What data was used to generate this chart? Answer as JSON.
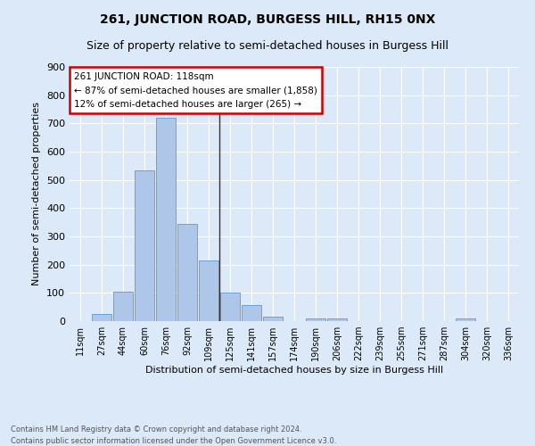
{
  "title": "261, JUNCTION ROAD, BURGESS HILL, RH15 0NX",
  "subtitle": "Size of property relative to semi-detached houses in Burgess Hill",
  "xlabel": "Distribution of semi-detached houses by size in Burgess Hill",
  "ylabel": "Number of semi-detached properties",
  "footnote1": "Contains HM Land Registry data © Crown copyright and database right 2024.",
  "footnote2": "Contains public sector information licensed under the Open Government Licence v3.0.",
  "bin_labels": [
    "11sqm",
    "27sqm",
    "44sqm",
    "60sqm",
    "76sqm",
    "92sqm",
    "109sqm",
    "125sqm",
    "141sqm",
    "157sqm",
    "174sqm",
    "190sqm",
    "206sqm",
    "222sqm",
    "239sqm",
    "255sqm",
    "271sqm",
    "287sqm",
    "304sqm",
    "320sqm",
    "336sqm"
  ],
  "bar_heights": [
    0,
    25,
    105,
    535,
    720,
    345,
    215,
    100,
    57,
    17,
    0,
    10,
    10,
    0,
    0,
    0,
    0,
    0,
    8,
    0,
    0
  ],
  "bar_color": "#aec6e8",
  "bar_edge_color": "#5b9bd5",
  "vline_index": 6.5,
  "vline_color": "#333333",
  "annotation_title": "261 JUNCTION ROAD: 118sqm",
  "annotation_line1": "← 87% of semi-detached houses are smaller (1,858)",
  "annotation_line2": "12% of semi-detached houses are larger (265) →",
  "annotation_box_color": "#ffffff",
  "annotation_box_edge": "#cc0000",
  "ylim": [
    0,
    900
  ],
  "yticks": [
    0,
    100,
    200,
    300,
    400,
    500,
    600,
    700,
    800,
    900
  ],
  "bg_color": "#dce9f8",
  "grid_color": "#ffffff",
  "title_fontsize": 10,
  "subtitle_fontsize": 9
}
